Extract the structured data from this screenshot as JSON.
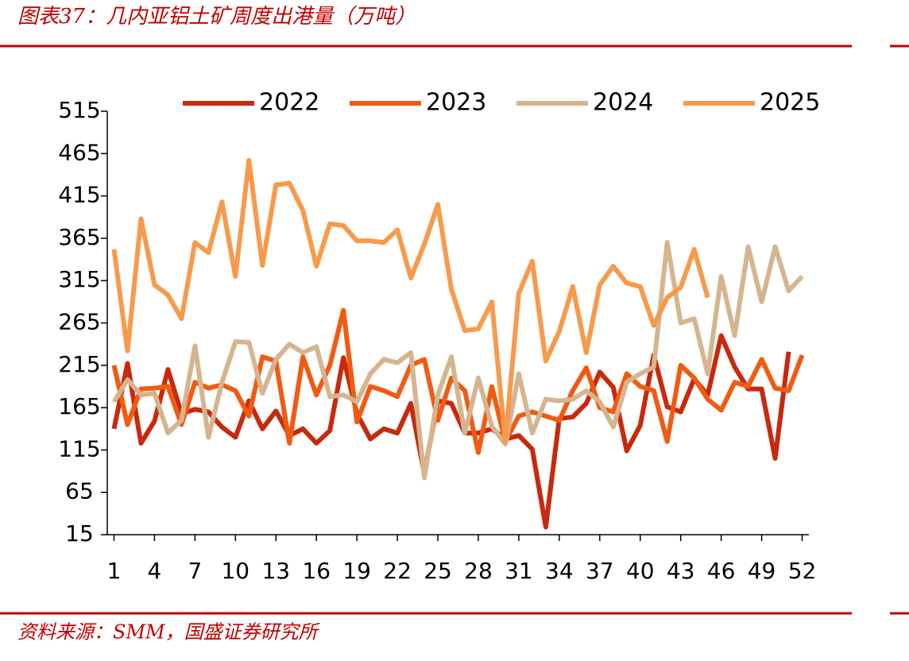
{
  "header": {
    "title": "图表37：几内亚铝土矿周度出港量（万吨）"
  },
  "chart_data": {
    "type": "line",
    "x": [
      1,
      2,
      3,
      4,
      5,
      6,
      7,
      8,
      9,
      10,
      11,
      12,
      13,
      14,
      15,
      16,
      17,
      18,
      19,
      20,
      21,
      22,
      23,
      24,
      25,
      26,
      27,
      28,
      29,
      30,
      31,
      32,
      33,
      34,
      35,
      36,
      37,
      38,
      39,
      40,
      41,
      42,
      43,
      44,
      45,
      46,
      47,
      48,
      49,
      50,
      51,
      52
    ],
    "xlim": [
      0.5,
      52.5
    ],
    "xticks": [
      1,
      4,
      7,
      10,
      13,
      16,
      19,
      22,
      25,
      28,
      31,
      34,
      37,
      40,
      43,
      46,
      49,
      52
    ],
    "ylim": [
      15,
      515
    ],
    "yticks": [
      15,
      65,
      115,
      165,
      215,
      265,
      315,
      365,
      415,
      465,
      515
    ],
    "legend": "top",
    "series": [
      {
        "name": "2022",
        "color": "#c8290e",
        "values": [
          140,
          217,
          123,
          149,
          210,
          158,
          163,
          160,
          142,
          130,
          173,
          140,
          161,
          132,
          140,
          123,
          138,
          224,
          158,
          128,
          140,
          135,
          170,
          87,
          173,
          170,
          135,
          135,
          140,
          128,
          132,
          116,
          24,
          152,
          154,
          170,
          207,
          189,
          114,
          144,
          227,
          166,
          160,
          199,
          180,
          250,
          213,
          187,
          187,
          105,
          231,
          null
        ]
      },
      {
        "name": "2023",
        "color": "#f25a12",
        "values": [
          215,
          145,
          187,
          188,
          190,
          145,
          195,
          188,
          192,
          185,
          155,
          225,
          220,
          123,
          225,
          180,
          215,
          280,
          148,
          190,
          185,
          178,
          215,
          222,
          150,
          200,
          185,
          112,
          190,
          125,
          155,
          160,
          155,
          150,
          185,
          212,
          165,
          160,
          205,
          190,
          185,
          125,
          215,
          200,
          175,
          162,
          195,
          190,
          222,
          188,
          185,
          227
        ]
      },
      {
        "name": "2024",
        "color": "#d5b590",
        "values": [
          172,
          198,
          180,
          182,
          135,
          150,
          238,
          130,
          195,
          243,
          242,
          182,
          222,
          240,
          230,
          237,
          178,
          180,
          172,
          205,
          222,
          218,
          230,
          82,
          180,
          225,
          135,
          200,
          143,
          122,
          205,
          135,
          175,
          173,
          175,
          185,
          172,
          142,
          195,
          205,
          213,
          360,
          265,
          270,
          205,
          320,
          250,
          355,
          290,
          355,
          303,
          320
        ]
      },
      {
        "name": "2025",
        "color": "#f79a4c",
        "values": [
          352,
          232,
          388,
          310,
          298,
          270,
          360,
          348,
          408,
          320,
          457,
          333,
          428,
          430,
          398,
          332,
          382,
          380,
          362,
          362,
          360,
          375,
          318,
          358,
          405,
          305,
          256,
          258,
          290,
          125,
          300,
          338,
          220,
          255,
          308,
          230,
          310,
          332,
          312,
          308,
          262,
          295,
          307,
          352,
          295,
          null,
          null,
          null,
          null,
          null,
          null,
          null
        ]
      }
    ]
  },
  "footer": {
    "source": "资料来源：SMM，国盛证券研究所"
  }
}
